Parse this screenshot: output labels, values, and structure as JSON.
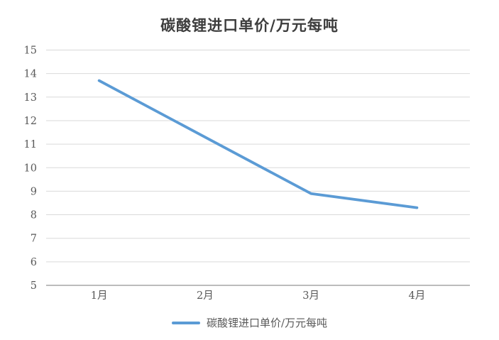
{
  "chart_data": {
    "type": "line",
    "title": "碳酸锂进口单价/万元每吨",
    "categories": [
      "1月",
      "2月",
      "3月",
      "4月"
    ],
    "series": [
      {
        "name": "碳酸锂进口单价/万元每吨",
        "values": [
          13.7,
          11.3,
          8.9,
          8.3
        ],
        "color": "#5b9bd5"
      }
    ],
    "xlabel": "",
    "ylabel": "",
    "ylim": [
      5,
      15
    ],
    "ytick_step": 1,
    "yticks": [
      5,
      6,
      7,
      8,
      9,
      10,
      11,
      12,
      13,
      14,
      15
    ],
    "grid": true,
    "legend_position": "bottom"
  },
  "legend": {
    "items": [
      {
        "label": "碳酸锂进口单价/万元每吨",
        "color": "#5b9bd5"
      }
    ]
  },
  "colors": {
    "series_line": "#5b9bd5",
    "gridline": "#d9d9d9",
    "axis_line": "#a6a6a6",
    "tick_label": "#595959",
    "title_text": "#3d3d3d",
    "background": "#ffffff"
  }
}
